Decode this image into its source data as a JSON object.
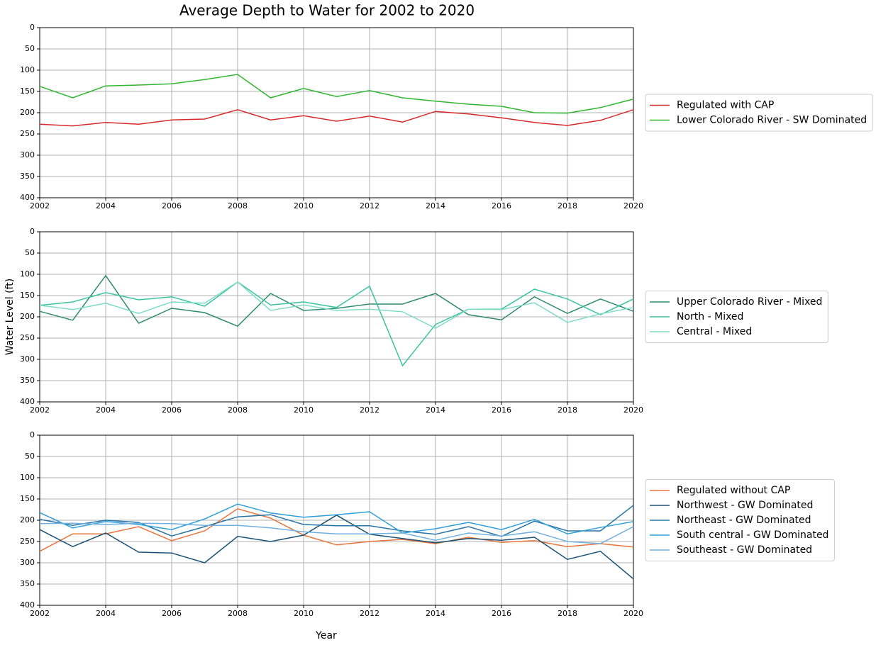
{
  "chart_data": [
    {
      "type": "line",
      "title": "Average Depth to Water for 2002 to 2020",
      "x": [
        2002,
        2003,
        2004,
        2005,
        2006,
        2007,
        2008,
        2009,
        2010,
        2011,
        2012,
        2013,
        2014,
        2015,
        2016,
        2017,
        2018,
        2019,
        2020
      ],
      "xlim": [
        2002,
        2020
      ],
      "xticks": [
        2002,
        2004,
        2006,
        2008,
        2010,
        2012,
        2014,
        2016,
        2018,
        2020
      ],
      "ylim": [
        400,
        0
      ],
      "yticks": [
        0,
        50,
        100,
        150,
        200,
        250,
        300,
        350,
        400
      ],
      "grid": true,
      "legend": "right",
      "series": [
        {
          "name": "Regulated with CAP",
          "color": "#d62a2a",
          "values": [
            227,
            231,
            223,
            227,
            217,
            215,
            193,
            217,
            207,
            220,
            208,
            222,
            197,
            203,
            212,
            223,
            230,
            218,
            193
          ]
        },
        {
          "name": "Lower Colorado River - SW Dominated",
          "color": "#2fb62f",
          "values": [
            138,
            165,
            137,
            135,
            132,
            122,
            110,
            165,
            143,
            162,
            148,
            165,
            173,
            180,
            185,
            200,
            201,
            188,
            168
          ]
        }
      ]
    },
    {
      "type": "line",
      "ylabel": "Water Level (ft)",
      "x": [
        2002,
        2003,
        2004,
        2005,
        2006,
        2007,
        2008,
        2009,
        2010,
        2011,
        2012,
        2013,
        2014,
        2015,
        2016,
        2017,
        2018,
        2019,
        2020
      ],
      "xlim": [
        2002,
        2020
      ],
      "xticks": [
        2002,
        2004,
        2006,
        2008,
        2010,
        2012,
        2014,
        2016,
        2018,
        2020
      ],
      "ylim": [
        400,
        0
      ],
      "yticks": [
        0,
        50,
        100,
        150,
        200,
        250,
        300,
        350,
        400
      ],
      "grid": true,
      "legend": "right",
      "series": [
        {
          "name": "Upper Colorado River - Mixed",
          "color": "#2e8b6e",
          "values": [
            187,
            208,
            103,
            215,
            180,
            190,
            222,
            145,
            185,
            180,
            170,
            170,
            145,
            195,
            207,
            153,
            192,
            158,
            187
          ]
        },
        {
          "name": "North - Mixed",
          "color": "#3cc49c",
          "values": [
            173,
            165,
            143,
            160,
            153,
            175,
            118,
            172,
            165,
            178,
            128,
            315,
            218,
            182,
            182,
            135,
            158,
            195,
            158
          ]
        },
        {
          "name": "Central - Mixed",
          "color": "#7fdcc4",
          "values": [
            173,
            183,
            168,
            192,
            165,
            168,
            118,
            185,
            172,
            185,
            182,
            188,
            227,
            182,
            183,
            167,
            213,
            193,
            178
          ]
        }
      ]
    },
    {
      "type": "line",
      "xlabel": "Year",
      "x": [
        2002,
        2003,
        2004,
        2005,
        2006,
        2007,
        2008,
        2009,
        2010,
        2011,
        2012,
        2013,
        2014,
        2015,
        2016,
        2017,
        2018,
        2019,
        2020
      ],
      "xlim": [
        2002,
        2020
      ],
      "xticks": [
        2002,
        2004,
        2006,
        2008,
        2010,
        2012,
        2014,
        2016,
        2018,
        2020
      ],
      "ylim": [
        400,
        0
      ],
      "yticks": [
        0,
        50,
        100,
        150,
        200,
        250,
        300,
        350,
        400
      ],
      "grid": true,
      "legend": "right",
      "series": [
        {
          "name": "Regulated without CAP",
          "color": "#e8743b",
          "values": [
            273,
            232,
            232,
            215,
            248,
            225,
            173,
            195,
            235,
            258,
            250,
            245,
            255,
            240,
            252,
            248,
            262,
            255,
            263
          ]
        },
        {
          "name": "Northwest - GW Dominated",
          "color": "#1a5276",
          "values": [
            222,
            262,
            230,
            275,
            277,
            300,
            238,
            250,
            235,
            188,
            233,
            243,
            253,
            243,
            247,
            240,
            292,
            273,
            338
          ]
        },
        {
          "name": "Northeast - GW Dominated",
          "color": "#2874a6",
          "values": [
            198,
            212,
            200,
            205,
            237,
            215,
            192,
            187,
            210,
            213,
            213,
            225,
            233,
            215,
            238,
            202,
            225,
            225,
            165
          ]
        },
        {
          "name": "South central - GW Dominated",
          "color": "#2e9fd9",
          "values": [
            182,
            218,
            203,
            210,
            222,
            197,
            162,
            183,
            193,
            187,
            180,
            230,
            220,
            205,
            222,
            198,
            232,
            217,
            203
          ]
        },
        {
          "name": "Southeast - GW Dominated",
          "color": "#6fb0e0",
          "values": [
            208,
            207,
            210,
            207,
            208,
            212,
            212,
            218,
            227,
            232,
            232,
            230,
            247,
            230,
            237,
            227,
            250,
            255,
            215
          ]
        }
      ]
    }
  ]
}
